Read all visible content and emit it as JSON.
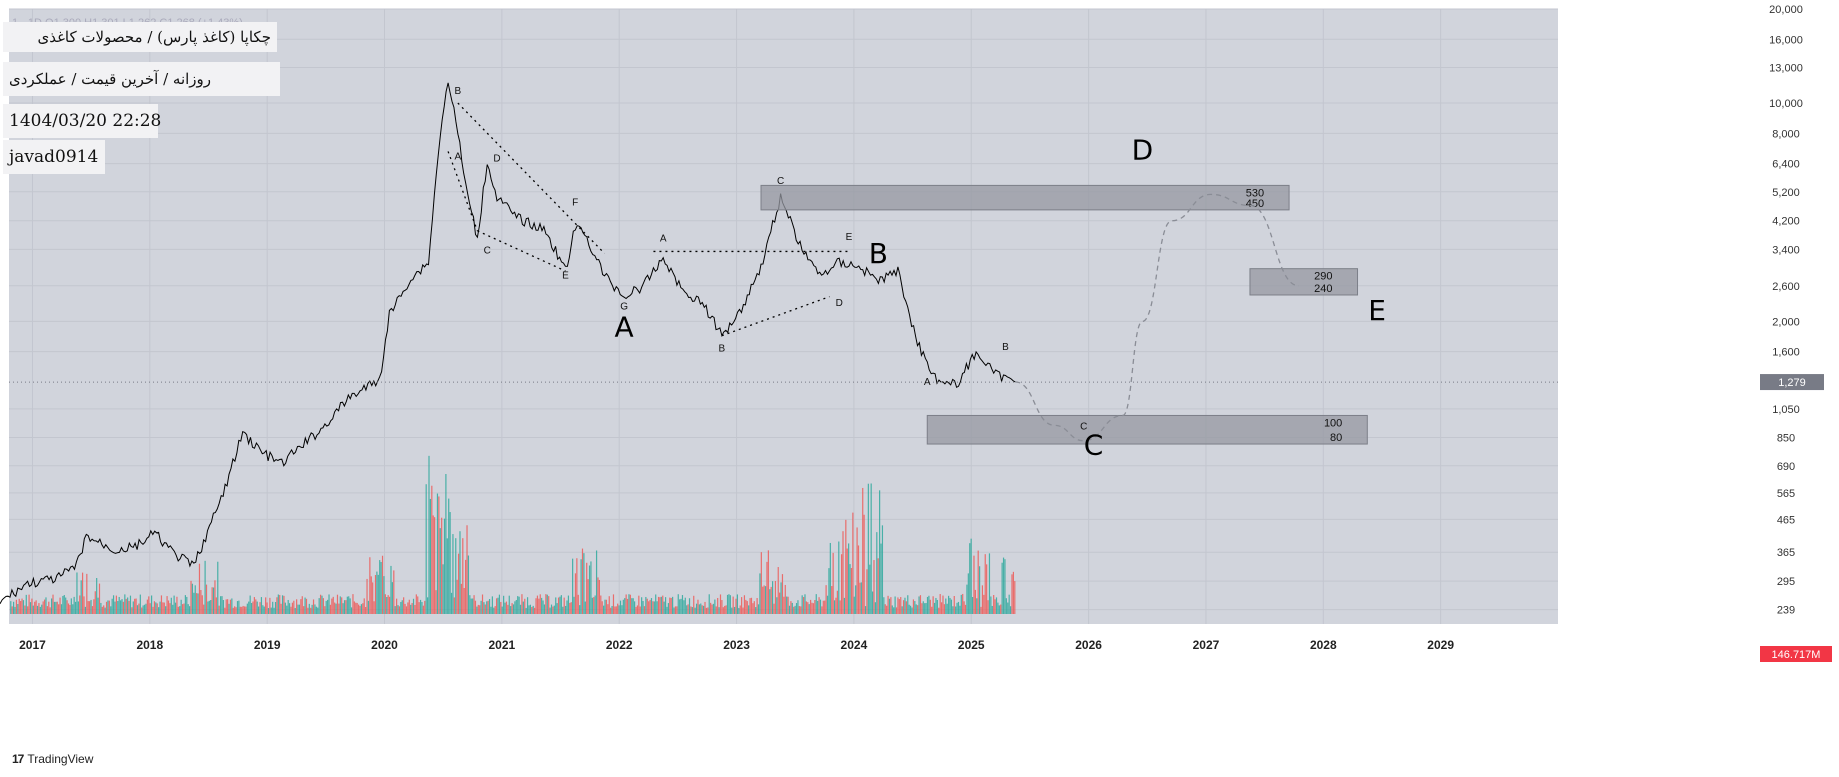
{
  "header": {
    "ticker_line": "1  ·  1D  O1,300  H1,301  L1,262  C1,268 (+1.43%)",
    "title_line1": "چکاپا (کاغذ پارس) / محصولات کاغذی",
    "title_line2": "روزانه / آخرین قیمت / عملکردی",
    "datetime": "1404/03/20 22:28",
    "author": "javad0914"
  },
  "footer": {
    "brand": "TradingView",
    "logo": "17"
  },
  "colors": {
    "background": "#d1d4dc",
    "candle": "#000000",
    "volume_up": "#26a69a",
    "volume_down": "#ef5350",
    "zone_fill": "#9598a1",
    "badge_last": "#787b86",
    "badge_volume": "#f23645"
  },
  "chart_data": {
    "type": "candlestick",
    "y_scale": "log",
    "ylim": [
      215,
      20000
    ],
    "x_ticks": [
      "2017",
      "2018",
      "2019",
      "2020",
      "2021",
      "2022",
      "2023",
      "2024",
      "2025",
      "2026",
      "2027",
      "2028",
      "2029"
    ],
    "y_ticks": [
      20000,
      16000,
      13000,
      10000,
      8000,
      6400,
      5200,
      4200,
      3400,
      2600,
      2000,
      1600,
      1279,
      1050,
      850,
      690,
      565,
      465,
      365,
      295,
      239
    ],
    "y_tick_labels": [
      "20,000",
      "16,000",
      "13,000",
      "10,000",
      "8,000",
      "6,400",
      "5,200",
      "4,200",
      "3,400",
      "2,600",
      "2,000",
      "1,600",
      "1,279",
      "1,050",
      "850",
      "690",
      "565",
      "465",
      "365",
      "295",
      "239"
    ],
    "last_price": {
      "value": 1279,
      "label": "1,279"
    },
    "volume_badge": "146.717M",
    "price_path": [
      [
        "2016-09",
        250
      ],
      [
        "2016-12",
        290
      ],
      [
        "2017-03",
        300
      ],
      [
        "2017-05",
        330
      ],
      [
        "2017-06",
        410
      ],
      [
        "2017-09",
        370
      ],
      [
        "2017-11",
        380
      ],
      [
        "2018-01",
        420
      ],
      [
        "2018-03",
        360
      ],
      [
        "2018-05",
        330
      ],
      [
        "2018-08",
        560
      ],
      [
        "2018-10",
        880
      ],
      [
        "2018-12",
        760
      ],
      [
        "2019-02",
        700
      ],
      [
        "2019-04",
        800
      ],
      [
        "2019-06",
        900
      ],
      [
        "2019-09",
        1150
      ],
      [
        "2019-12",
        1300
      ],
      [
        "2020-01",
        2100
      ],
      [
        "2020-03",
        2700
      ],
      [
        "2020-05",
        3100
      ],
      [
        "2020-06",
        7000
      ],
      [
        "2020-07",
        12000
      ],
      [
        "2020-08",
        8000
      ],
      [
        "2020-09",
        5000
      ],
      [
        "2020-10",
        3700
      ],
      [
        "2020-11",
        6500
      ],
      [
        "2020-12",
        5000
      ],
      [
        "2021-02",
        4300
      ],
      [
        "2021-05",
        3900
      ],
      [
        "2021-07",
        2900
      ],
      [
        "2021-08",
        4000
      ],
      [
        "2021-09",
        3800
      ],
      [
        "2021-11",
        2800
      ],
      [
        "2022-01",
        2400
      ],
      [
        "2022-03",
        2600
      ],
      [
        "2022-05",
        3200
      ],
      [
        "2022-07",
        2500
      ],
      [
        "2022-09",
        2300
      ],
      [
        "2022-11",
        1800
      ],
      [
        "2023-01",
        2200
      ],
      [
        "2023-03",
        3000
      ],
      [
        "2023-05",
        5000
      ],
      [
        "2023-07",
        3500
      ],
      [
        "2023-09",
        2800
      ],
      [
        "2023-11",
        3100
      ],
      [
        "2024-01",
        3000
      ],
      [
        "2024-03",
        2700
      ],
      [
        "2024-05",
        2900
      ],
      [
        "2024-07",
        1700
      ],
      [
        "2024-09",
        1300
      ],
      [
        "2024-11",
        1250
      ],
      [
        "2025-01",
        1600
      ],
      [
        "2025-03",
        1350
      ],
      [
        "2025-05",
        1280
      ]
    ],
    "volume": [
      {
        "date": "2017-06",
        "value": 28
      },
      {
        "date": "2018-06",
        "value": 32
      },
      {
        "date": "2019-12",
        "value": 35
      },
      {
        "date": "2020-06",
        "value": 100
      },
      {
        "date": "2020-08",
        "value": 72
      },
      {
        "date": "2021-09",
        "value": 40
      },
      {
        "date": "2023-04",
        "value": 38
      },
      {
        "date": "2023-11",
        "value": 60
      },
      {
        "date": "2024-02",
        "value": 80
      },
      {
        "date": "2025-01",
        "value": 45
      },
      {
        "date": "2025-05",
        "value": 35
      }
    ],
    "zones": [
      {
        "from": "2023-03",
        "to": "2027-09",
        "top": 5450,
        "bottom": 4550,
        "label_high": "530",
        "label_low": "450"
      },
      {
        "from": "2027-05",
        "to": "2028-04",
        "top": 2950,
        "bottom": 2430,
        "label_high": "290",
        "label_low": "240"
      },
      {
        "from": "2024-08",
        "to": "2028-05",
        "top": 1000,
        "bottom": 810,
        "label_high": "100",
        "label_low": "80"
      }
    ],
    "projection_path": [
      [
        "2025-05",
        1280
      ],
      [
        "2025-09",
        930
      ],
      [
        "2025-12",
        830
      ],
      [
        "2026-04",
        1000
      ],
      [
        "2026-06",
        2000
      ],
      [
        "2026-09",
        4200
      ],
      [
        "2027-01",
        5100
      ],
      [
        "2027-05",
        4700
      ],
      [
        "2027-10",
        2600
      ]
    ],
    "big_labels": [
      {
        "text": "A",
        "date": "2022-01",
        "price": 1790
      },
      {
        "text": "B",
        "date": "2024-03",
        "price": 3080
      },
      {
        "text": "C",
        "date": "2026-01",
        "price": 750
      },
      {
        "text": "D",
        "date": "2026-06",
        "price": 6600
      },
      {
        "text": "E",
        "date": "2028-06",
        "price": 2020
      }
    ],
    "small_labels": [
      {
        "text": "B",
        "date": "2020-08",
        "price": 10700
      },
      {
        "text": "A",
        "date": "2020-08",
        "price": 6600
      },
      {
        "text": "D",
        "date": "2020-12",
        "price": 6500
      },
      {
        "text": "C",
        "date": "2020-11",
        "price": 3300
      },
      {
        "text": "F",
        "date": "2021-08",
        "price": 4700
      },
      {
        "text": "E",
        "date": "2021-07",
        "price": 2740
      },
      {
        "text": "G",
        "date": "2022-01",
        "price": 2180
      },
      {
        "text": "A",
        "date": "2022-05",
        "price": 3600
      },
      {
        "text": "C",
        "date": "2023-05",
        "price": 5500
      },
      {
        "text": "E",
        "date": "2023-12",
        "price": 3650
      },
      {
        "text": "D",
        "date": "2023-11",
        "price": 2240
      },
      {
        "text": "B",
        "date": "2022-11",
        "price": 1600
      },
      {
        "text": "A",
        "date": "2024-08",
        "price": 1250
      },
      {
        "text": "B",
        "date": "2025-04",
        "price": 1620
      },
      {
        "text": "C",
        "date": "2025-12",
        "price": 900
      }
    ],
    "dotted_lines": [
      [
        [
          "2020-08",
          10000
        ],
        [
          "2021-11",
          3300
        ]
      ],
      [
        [
          "2020-07",
          7000
        ],
        [
          "2020-10",
          3900
        ]
      ],
      [
        [
          "2020-10",
          3900
        ],
        [
          "2021-07",
          2900
        ]
      ],
      [
        [
          "2022-04",
          3350
        ],
        [
          "2023-12",
          3350
        ]
      ],
      [
        [
          "2022-11",
          1800
        ],
        [
          "2023-10",
          2400
        ]
      ]
    ]
  }
}
